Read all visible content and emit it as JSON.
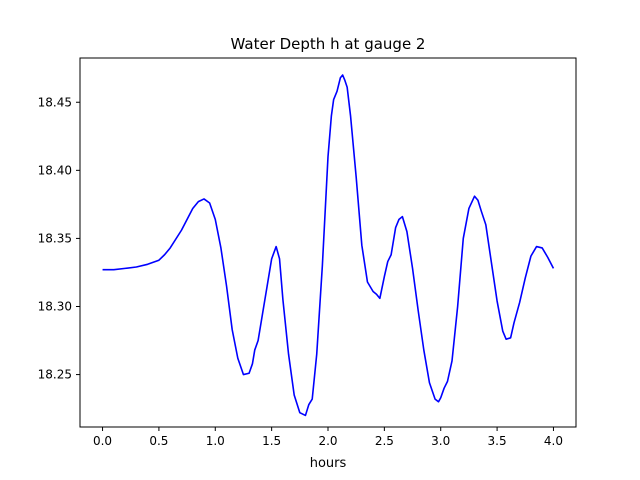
{
  "chart_data": {
    "type": "line",
    "title": "Water Depth h at gauge 2",
    "xlabel": "hours",
    "ylabel": "",
    "xlim": [
      -0.2,
      4.2
    ],
    "ylim": [
      18.2115,
      18.4825
    ],
    "xticks": [
      0.0,
      0.5,
      1.0,
      1.5,
      2.0,
      2.5,
      3.0,
      3.5,
      4.0
    ],
    "xtick_labels": [
      "0.0",
      "0.5",
      "1.0",
      "1.5",
      "2.0",
      "2.5",
      "3.0",
      "3.5",
      "4.0"
    ],
    "yticks": [
      18.25,
      18.3,
      18.35,
      18.4,
      18.45
    ],
    "ytick_labels": [
      "18.25",
      "18.30",
      "18.35",
      "18.40",
      "18.45"
    ],
    "grid": false,
    "legend": "none",
    "series": [
      {
        "color": "#0000ff",
        "x": [
          0.0,
          0.1,
          0.2,
          0.3,
          0.4,
          0.5,
          0.55,
          0.6,
          0.7,
          0.8,
          0.85,
          0.9,
          0.95,
          1.0,
          1.05,
          1.1,
          1.15,
          1.2,
          1.25,
          1.3,
          1.33,
          1.35,
          1.38,
          1.42,
          1.46,
          1.5,
          1.54,
          1.57,
          1.6,
          1.65,
          1.7,
          1.75,
          1.8,
          1.83,
          1.86,
          1.9,
          1.95,
          2.0,
          2.03,
          2.05,
          2.08,
          2.11,
          2.13,
          2.15,
          2.17,
          2.2,
          2.25,
          2.3,
          2.35,
          2.4,
          2.43,
          2.46,
          2.5,
          2.53,
          2.56,
          2.6,
          2.63,
          2.66,
          2.7,
          2.75,
          2.8,
          2.85,
          2.9,
          2.95,
          2.98,
          3.0,
          3.03,
          3.06,
          3.1,
          3.15,
          3.2,
          3.25,
          3.3,
          3.33,
          3.36,
          3.4,
          3.45,
          3.5,
          3.55,
          3.58,
          3.62,
          3.65,
          3.7,
          3.75,
          3.8,
          3.85,
          3.9,
          3.95,
          4.0
        ],
        "y": [
          18.327,
          18.327,
          18.328,
          18.329,
          18.331,
          18.334,
          18.338,
          18.343,
          18.356,
          18.372,
          18.377,
          18.379,
          18.376,
          18.364,
          18.343,
          18.315,
          18.283,
          18.262,
          18.25,
          18.251,
          18.258,
          18.268,
          18.275,
          18.295,
          18.315,
          18.335,
          18.344,
          18.335,
          18.305,
          18.265,
          18.235,
          18.222,
          18.22,
          18.228,
          18.232,
          18.265,
          18.33,
          18.41,
          18.44,
          18.452,
          18.458,
          18.468,
          18.47,
          18.466,
          18.461,
          18.44,
          18.395,
          18.345,
          18.318,
          18.311,
          18.309,
          18.306,
          18.322,
          18.333,
          18.338,
          18.358,
          18.364,
          18.366,
          18.355,
          18.328,
          18.297,
          18.268,
          18.244,
          18.232,
          18.23,
          18.233,
          18.24,
          18.245,
          18.26,
          18.3,
          18.35,
          18.372,
          18.381,
          18.378,
          18.37,
          18.36,
          18.332,
          18.304,
          18.282,
          18.276,
          18.277,
          18.288,
          18.303,
          18.321,
          18.337,
          18.344,
          18.343,
          18.336,
          18.328
        ]
      }
    ]
  }
}
